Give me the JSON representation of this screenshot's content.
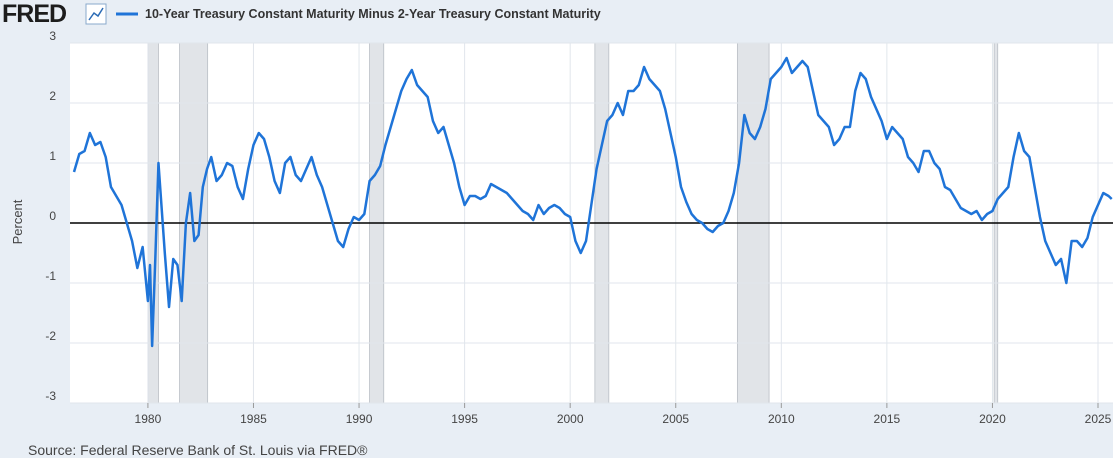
{
  "logo": "FRED",
  "source": "Source: Federal Reserve Bank of St. Louis via FRED®",
  "chart_data": {
    "type": "line",
    "y_label": "Percent",
    "xlim": [
      1976.31,
      2025.71
    ],
    "ylim": [
      -3,
      3
    ],
    "xticks": [
      1980,
      1985,
      1990,
      1995,
      2000,
      2005,
      2010,
      2015,
      2020,
      2025
    ],
    "yticks": [
      -3,
      -2,
      -1,
      0,
      1,
      2,
      3
    ],
    "grid": true,
    "baseline": 0,
    "recessions": [
      [
        1980.0,
        1980.5
      ],
      [
        1981.5,
        1982.83
      ],
      [
        1990.5,
        1991.17
      ],
      [
        2001.17,
        2001.83
      ],
      [
        2007.92,
        2009.42
      ],
      [
        2020.08,
        2020.25
      ]
    ],
    "recession_color": "#e1e4e8",
    "x": [
      1976.5,
      1976.75,
      1977,
      1977.25,
      1977.5,
      1977.75,
      1978,
      1978.25,
      1978.5,
      1978.75,
      1979,
      1979.25,
      1979.5,
      1979.75,
      1980,
      1980.1,
      1980.2,
      1980.35,
      1980.5,
      1980.6,
      1980.8,
      1981,
      1981.2,
      1981.4,
      1981.6,
      1981.8,
      1982,
      1982.2,
      1982.4,
      1982.6,
      1982.8,
      1983,
      1983.25,
      1983.5,
      1983.75,
      1984,
      1984.25,
      1984.5,
      1984.75,
      1985,
      1985.25,
      1985.5,
      1985.75,
      1986,
      1986.25,
      1986.5,
      1986.75,
      1987,
      1987.25,
      1987.5,
      1987.75,
      1988,
      1988.25,
      1988.5,
      1988.75,
      1989,
      1989.25,
      1989.5,
      1989.75,
      1990,
      1990.25,
      1990.5,
      1990.75,
      1991,
      1991.25,
      1991.5,
      1991.75,
      1992,
      1992.25,
      1992.5,
      1992.75,
      1993,
      1993.25,
      1993.5,
      1993.75,
      1994,
      1994.25,
      1994.5,
      1994.75,
      1995,
      1995.25,
      1995.5,
      1995.75,
      1996,
      1996.25,
      1996.5,
      1996.75,
      1997,
      1997.25,
      1997.5,
      1997.75,
      1998,
      1998.25,
      1998.5,
      1998.75,
      1999,
      1999.25,
      1999.5,
      1999.75,
      2000,
      2000.25,
      2000.5,
      2000.75,
      2001,
      2001.25,
      2001.5,
      2001.75,
      2002,
      2002.25,
      2002.5,
      2002.75,
      2003,
      2003.25,
      2003.5,
      2003.75,
      2004,
      2004.25,
      2004.5,
      2004.75,
      2005,
      2005.25,
      2005.5,
      2005.75,
      2006,
      2006.25,
      2006.5,
      2006.75,
      2007,
      2007.25,
      2007.5,
      2007.75,
      2008,
      2008.25,
      2008.5,
      2008.75,
      2009,
      2009.25,
      2009.5,
      2009.75,
      2010,
      2010.25,
      2010.5,
      2010.75,
      2011,
      2011.25,
      2011.5,
      2011.75,
      2012,
      2012.25,
      2012.5,
      2012.75,
      2013,
      2013.25,
      2013.5,
      2013.75,
      2014,
      2014.25,
      2014.5,
      2014.75,
      2015,
      2015.25,
      2015.5,
      2015.75,
      2016,
      2016.25,
      2016.5,
      2016.75,
      2017,
      2017.25,
      2017.5,
      2017.75,
      2018,
      2018.25,
      2018.5,
      2018.75,
      2019,
      2019.25,
      2019.5,
      2019.75,
      2020,
      2020.25,
      2020.5,
      2020.75,
      2021,
      2021.25,
      2021.5,
      2021.75,
      2022,
      2022.25,
      2022.5,
      2022.75,
      2023,
      2023.25,
      2023.5,
      2023.75,
      2024,
      2024.25,
      2024.5,
      2024.75,
      2025,
      2025.25,
      2025.5,
      2025.65
    ],
    "series": [
      {
        "name": "10-Year Treasury Constant Maturity Minus 2-Year Treasury Constant Maturity",
        "color": "#1f74d8",
        "values": [
          0.85,
          1.15,
          1.2,
          1.5,
          1.3,
          1.35,
          1.1,
          0.6,
          0.45,
          0.3,
          0,
          -0.3,
          -0.75,
          -0.4,
          -1.3,
          -0.7,
          -2.05,
          -0.6,
          1.0,
          0.5,
          -0.5,
          -1.4,
          -0.6,
          -0.7,
          -1.3,
          0,
          0.5,
          -0.3,
          -0.2,
          0.6,
          0.9,
          1.1,
          0.7,
          0.8,
          1.0,
          0.95,
          0.6,
          0.4,
          0.9,
          1.3,
          1.5,
          1.4,
          1.1,
          0.7,
          0.5,
          1.0,
          1.1,
          0.8,
          0.7,
          0.9,
          1.1,
          0.8,
          0.6,
          0.3,
          0,
          -0.3,
          -0.4,
          -0.1,
          0.1,
          0.05,
          0.15,
          0.7,
          0.8,
          0.95,
          1.3,
          1.6,
          1.9,
          2.2,
          2.4,
          2.55,
          2.3,
          2.2,
          2.1,
          1.7,
          1.5,
          1.6,
          1.3,
          1.0,
          0.6,
          0.3,
          0.45,
          0.45,
          0.4,
          0.45,
          0.65,
          0.6,
          0.55,
          0.5,
          0.4,
          0.3,
          0.2,
          0.15,
          0.05,
          0.3,
          0.15,
          0.25,
          0.3,
          0.25,
          0.15,
          0.1,
          -0.3,
          -0.5,
          -0.3,
          0.3,
          0.9,
          1.3,
          1.7,
          1.8,
          2.0,
          1.8,
          2.2,
          2.2,
          2.3,
          2.6,
          2.4,
          2.3,
          2.2,
          1.9,
          1.5,
          1.1,
          0.6,
          0.35,
          0.15,
          0.05,
          0,
          -0.1,
          -0.15,
          -0.05,
          0,
          0.2,
          0.5,
          1.0,
          1.8,
          1.5,
          1.4,
          1.6,
          1.9,
          2.4,
          2.5,
          2.6,
          2.75,
          2.5,
          2.6,
          2.7,
          2.6,
          2.2,
          1.8,
          1.7,
          1.6,
          1.3,
          1.4,
          1.6,
          1.6,
          2.2,
          2.5,
          2.4,
          2.1,
          1.9,
          1.7,
          1.4,
          1.6,
          1.5,
          1.4,
          1.1,
          1.0,
          0.85,
          1.2,
          1.2,
          1.0,
          0.9,
          0.6,
          0.55,
          0.4,
          0.25,
          0.2,
          0.15,
          0.2,
          0.05,
          0.15,
          0.2,
          0.4,
          0.5,
          0.6,
          1.1,
          1.5,
          1.2,
          1.1,
          0.6,
          0.1,
          -0.3,
          -0.5,
          -0.7,
          -0.6,
          -1.0,
          -0.3,
          -0.3,
          -0.4,
          -0.25,
          0.1,
          0.3,
          0.5,
          0.45,
          0.4
        ]
      }
    ]
  }
}
